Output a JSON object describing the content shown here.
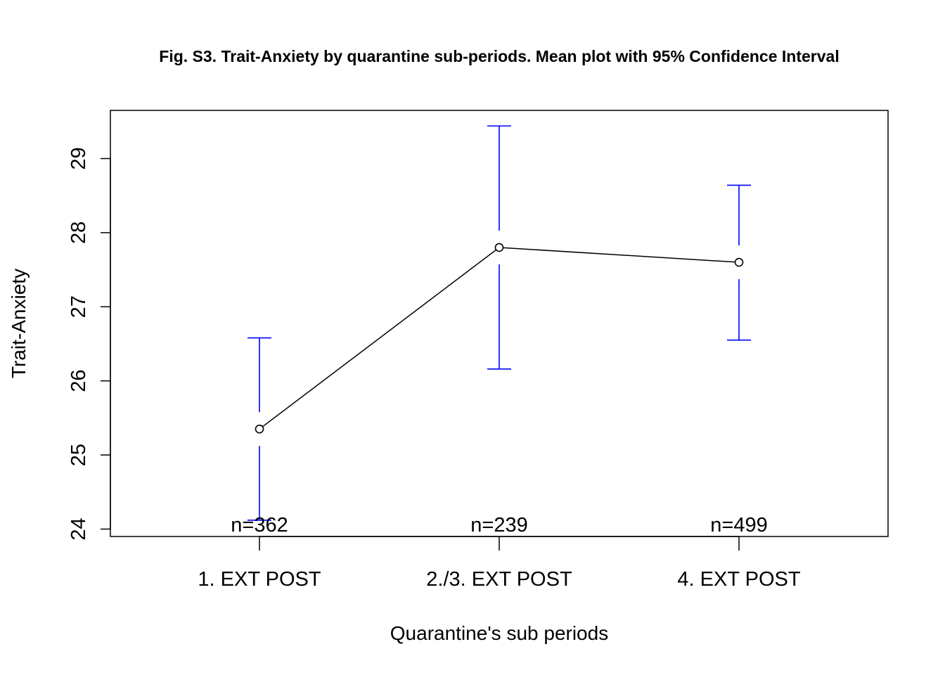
{
  "chart_data": {
    "type": "line",
    "title": "Fig. S3. Trait-Anxiety by quarantine sub-periods. Mean plot with 95% Confidence Interval",
    "xlabel": "Quarantine's sub periods",
    "ylabel": "Trait-Anxiety",
    "categories": [
      "1. EXT POST",
      "2./3. EXT POST",
      "4. EXT POST"
    ],
    "y_ticks": [
      24,
      25,
      26,
      27,
      28,
      29
    ],
    "ylim": [
      23.9,
      29.65
    ],
    "series": [
      {
        "values": [
          25.35,
          27.8,
          27.6
        ],
        "ci_lower": [
          24.12,
          26.16,
          26.55
        ],
        "ci_upper": [
          26.58,
          29.44,
          28.64
        ]
      }
    ],
    "n_labels": [
      "n=362",
      "n=239",
      "n=499"
    ],
    "grid": false,
    "colors": {
      "line": "#000000",
      "error_bars": "#0000ff",
      "frame": "#000000"
    }
  }
}
